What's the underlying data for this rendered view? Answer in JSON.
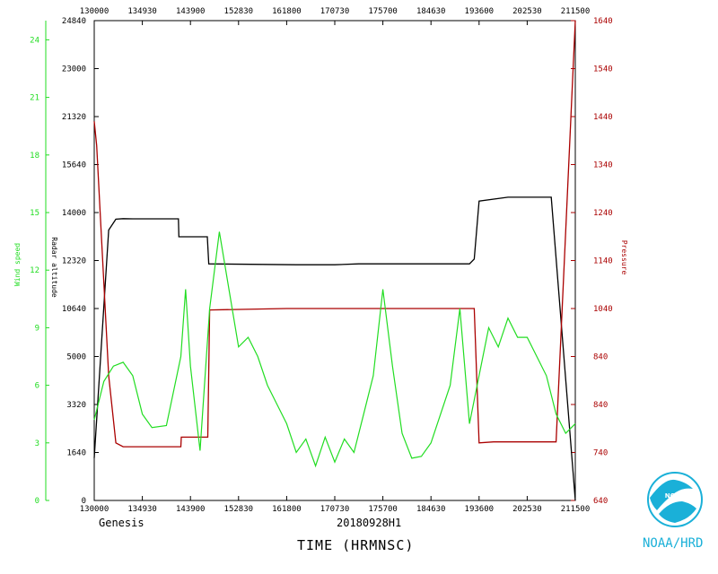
{
  "chart_data": {
    "type": "line",
    "x_ticks_bottom": [
      "130000",
      "134930",
      "143900",
      "152830",
      "161800",
      "170730",
      "175700",
      "184630",
      "193600",
      "202530",
      "211500"
    ],
    "x_ticks_top": [
      "130000",
      "134930",
      "143900",
      "152830",
      "161800",
      "170730",
      "175700",
      "184630",
      "193600",
      "202530",
      "211500"
    ],
    "xlabel": "TIME (HRMNSC)",
    "caption_left": "Genesis",
    "caption_mid": "20180928H1",
    "credit": "NOAA/HRD",
    "axes": {
      "wind": {
        "label": "Wind speed",
        "color": "#22dd22",
        "range": [
          0,
          25
        ],
        "tick_labels": [
          "0",
          "3",
          "6",
          "9",
          "12",
          "15",
          "18",
          "21",
          "24"
        ]
      },
      "altitude": {
        "label": "Radar altitude",
        "color": "#000000",
        "range": [
          0,
          24840
        ],
        "tick_labels": [
          "0",
          "1640",
          "3320",
          "5000",
          "10640",
          "12320",
          "14000",
          "15640",
          "21320",
          "23000",
          "24840"
        ]
      },
      "pressure": {
        "label": "Pressure",
        "color": "#aa0000",
        "range": [
          640,
          1640
        ],
        "tick_labels": [
          "640",
          "740",
          "840",
          "840",
          "1040",
          "1140",
          "1240",
          "1340",
          "1440",
          "1540",
          "1640"
        ]
      }
    },
    "series": [
      {
        "name": "Radar altitude",
        "axis": "altitude",
        "color": "#000000",
        "x": [
          0,
          0.03,
          0.045,
          0.06,
          0.08,
          0.105,
          0.175,
          0.176,
          0.235,
          0.238,
          0.42,
          0.5,
          0.55,
          0.78,
          0.79,
          0.8,
          0.86,
          0.95,
          1.0
        ],
        "y": [
          2200,
          14000,
          14560,
          14590,
          14580,
          14580,
          14580,
          13650,
          13650,
          12250,
          12200,
          12200,
          12250,
          12250,
          12500,
          15500,
          15700,
          15700,
          0
        ]
      },
      {
        "name": "Pressure",
        "axis": "pressure",
        "color": "#aa0000",
        "x": [
          0,
          0.005,
          0.03,
          0.045,
          0.06,
          0.18,
          0.181,
          0.236,
          0.24,
          0.4,
          0.56,
          0.79,
          0.8,
          0.83,
          0.96,
          1.0
        ],
        "y": [
          1430,
          1380,
          900,
          760,
          752,
          752,
          772,
          772,
          1037,
          1040,
          1040,
          1040,
          760,
          762,
          762,
          1640
        ]
      },
      {
        "name": "Wind speed",
        "axis": "wind",
        "color": "#22dd22",
        "x": [
          0,
          0.02,
          0.04,
          0.06,
          0.08,
          0.1,
          0.12,
          0.15,
          0.18,
          0.19,
          0.2,
          0.22,
          0.24,
          0.26,
          0.28,
          0.3,
          0.32,
          0.34,
          0.36,
          0.38,
          0.4,
          0.42,
          0.44,
          0.46,
          0.48,
          0.5,
          0.52,
          0.54,
          0.56,
          0.58,
          0.6,
          0.62,
          0.64,
          0.66,
          0.68,
          0.7,
          0.72,
          0.74,
          0.76,
          0.78,
          0.8,
          0.82,
          0.84,
          0.86,
          0.88,
          0.9,
          0.92,
          0.94,
          0.96,
          0.98,
          1.0
        ],
        "y": [
          4.2,
          6.2,
          7.0,
          7.2,
          6.5,
          4.5,
          3.8,
          3.9,
          7.5,
          11.0,
          7.0,
          2.6,
          10.0,
          14.0,
          11.0,
          8.0,
          8.5,
          7.5,
          6.0,
          5.0,
          4.0,
          2.5,
          3.2,
          1.8,
          3.3,
          2.0,
          3.2,
          2.5,
          4.5,
          6.5,
          11.0,
          7.0,
          3.5,
          2.2,
          2.3,
          3.0,
          4.5,
          6.0,
          10.0,
          4.0,
          6.5,
          9.0,
          8.0,
          9.5,
          8.5,
          8.5,
          7.5,
          6.5,
          4.5,
          3.5,
          4.0
        ]
      }
    ]
  }
}
